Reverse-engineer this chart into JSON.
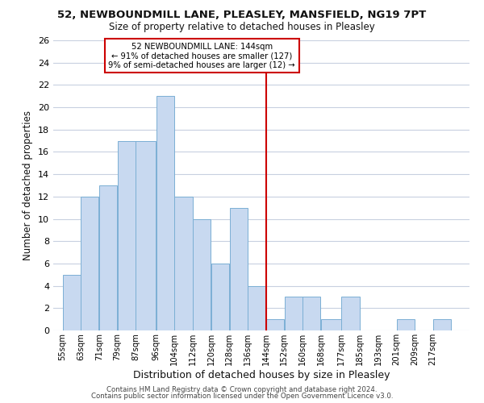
{
  "title1": "52, NEWBOUNDMILL LANE, PLEASLEY, MANSFIELD, NG19 7PT",
  "title2": "Size of property relative to detached houses in Pleasley",
  "xlabel": "Distribution of detached houses by size in Pleasley",
  "ylabel": "Number of detached properties",
  "bin_labels": [
    "55sqm",
    "63sqm",
    "71sqm",
    "79sqm",
    "87sqm",
    "96sqm",
    "104sqm",
    "112sqm",
    "120sqm",
    "128sqm",
    "136sqm",
    "144sqm",
    "152sqm",
    "160sqm",
    "168sqm",
    "177sqm",
    "185sqm",
    "193sqm",
    "201sqm",
    "209sqm",
    "217sqm"
  ],
  "bin_edges": [
    55,
    63,
    71,
    79,
    87,
    96,
    104,
    112,
    120,
    128,
    136,
    144,
    152,
    160,
    168,
    177,
    185,
    193,
    201,
    209,
    217,
    225
  ],
  "counts": [
    5,
    12,
    13,
    17,
    17,
    21,
    12,
    10,
    6,
    11,
    4,
    1,
    3,
    3,
    1,
    3,
    0,
    0,
    1,
    0,
    1
  ],
  "bar_color": "#c8d9f0",
  "bar_edgecolor": "#7bafd4",
  "marker_value": 144,
  "marker_color": "#cc0000",
  "annotation_title": "52 NEWBOUNDMILL LANE: 144sqm",
  "annotation_line1": "← 91% of detached houses are smaller (127)",
  "annotation_line2": "9% of semi-detached houses are larger (12) →",
  "annotation_box_edgecolor": "#cc0000",
  "ylim": [
    0,
    26
  ],
  "yticks": [
    0,
    2,
    4,
    6,
    8,
    10,
    12,
    14,
    16,
    18,
    20,
    22,
    24,
    26
  ],
  "footer1": "Contains HM Land Registry data © Crown copyright and database right 2024.",
  "footer2": "Contains public sector information licensed under the Open Government Licence v3.0.",
  "background_color": "#ffffff",
  "grid_color": "#c8d0e0"
}
